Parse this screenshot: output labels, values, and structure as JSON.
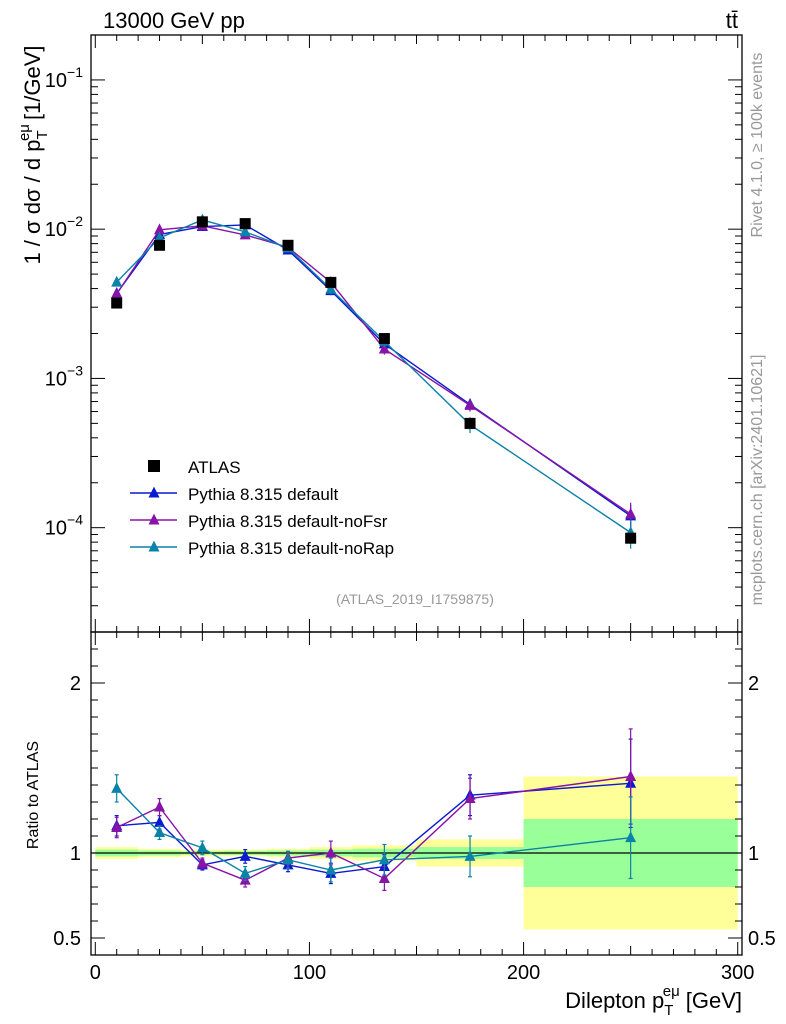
{
  "header": {
    "energy_label": "13000 GeV pp",
    "process_label": "tt̄"
  },
  "side_labels": {
    "rivet": "Rivet 4.1.0, ≥ 100k events",
    "mcplots": "mcplots.cern.ch [arXiv:2401.10621]"
  },
  "analysis_label": "(ATLAS_2019_I1759875)",
  "axes": {
    "main_ylabel": "1 / σ  dσ / d p",
    "main_ylabel_sub": "T",
    "main_ylabel_sup": "eμ",
    "main_ylabel_unit": "[1/GeV]",
    "ratio_ylabel": "Ratio to ATLAS",
    "xlabel": "Dilepton p",
    "xlabel_sub": "T",
    "xlabel_sup": "eμ",
    "xlabel_unit": "[GeV]"
  },
  "chart_data": {
    "type": "line",
    "title": "13000 GeV pp  tt̄",
    "xlim": [
      -2,
      302
    ],
    "ylim_log": [
      2e-05,
      0.2
    ],
    "ratio_ylim": [
      0.4,
      2.3
    ],
    "x_ticks": [
      0,
      100,
      200,
      300
    ],
    "x_tick_labels": [
      "0",
      "100",
      "200",
      "300"
    ],
    "y_major_ticks": [
      0.1,
      0.01,
      0.001,
      0.0001
    ],
    "y_tick_labels": [
      {
        "base": "10",
        "exp": "−1"
      },
      {
        "base": "10",
        "exp": "−2"
      },
      {
        "base": "10",
        "exp": "−3"
      },
      {
        "base": "10",
        "exp": "−4"
      }
    ],
    "ratio_ticks": [
      0.5,
      1,
      2
    ],
    "ratio_tick_labels": [
      "0.5",
      "1",
      "2"
    ],
    "bins": [
      {
        "lo": 0,
        "hi": 20,
        "x": 10
      },
      {
        "lo": 20,
        "hi": 40,
        "x": 30
      },
      {
        "lo": 40,
        "hi": 60,
        "x": 50
      },
      {
        "lo": 60,
        "hi": 80,
        "x": 70
      },
      {
        "lo": 80,
        "hi": 100,
        "x": 90
      },
      {
        "lo": 100,
        "hi": 120,
        "x": 110
      },
      {
        "lo": 120,
        "hi": 150,
        "x": 135
      },
      {
        "lo": 150,
        "hi": 200,
        "x": 175
      },
      {
        "lo": 200,
        "hi": 300,
        "x": 250
      }
    ],
    "data": {
      "name": "ATLAS",
      "color": "#000000",
      "values": [
        0.0032,
        0.0078,
        0.0112,
        0.0109,
        0.0078,
        0.0044,
        0.00185,
        0.0005,
        8.5e-05
      ],
      "stat_band_ratio": [
        0.02,
        0.015,
        0.01,
        0.012,
        0.015,
        0.02,
        0.025,
        0.035,
        0.2
      ],
      "total_band_ratio": [
        0.035,
        0.025,
        0.02,
        0.02,
        0.025,
        0.035,
        0.045,
        0.08,
        0.45
      ]
    },
    "series": [
      {
        "name": "Pythia 8.315 default",
        "color": "#0b1ad2",
        "ratio": [
          1.16,
          1.18,
          0.93,
          0.98,
          0.93,
          0.88,
          0.92,
          1.34,
          1.41
        ],
        "ratio_err": [
          0.06,
          0.04,
          0.03,
          0.04,
          0.04,
          0.06,
          0.07,
          0.12,
          0.26
        ]
      },
      {
        "name": "Pythia 8.315 default-noFsr",
        "color": "#8713a7",
        "ratio": [
          1.15,
          1.27,
          0.94,
          0.84,
          0.97,
          1.0,
          0.85,
          1.32,
          1.45
        ],
        "ratio_err": [
          0.06,
          0.05,
          0.03,
          0.04,
          0.04,
          0.07,
          0.07,
          0.12,
          0.28
        ]
      },
      {
        "name": "Pythia 8.315 default-noRap",
        "color": "#0b82a7",
        "ratio": [
          1.38,
          1.12,
          1.03,
          0.88,
          0.96,
          0.9,
          0.96,
          0.98,
          1.09
        ],
        "ratio_err": [
          0.08,
          0.04,
          0.04,
          0.04,
          0.05,
          0.07,
          0.09,
          0.12,
          0.24
        ]
      }
    ],
    "legend_position": "center-left"
  }
}
